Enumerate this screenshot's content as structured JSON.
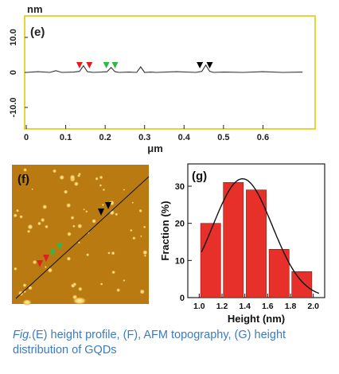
{
  "figure": {
    "caption_fig": "Fig.",
    "caption_text": "(E) height profile, (F), AFM topography, (G) height distribution of GQDs"
  },
  "chart_data": [
    {
      "type": "line",
      "panel_label": "(e)",
      "xlabel": "μm",
      "ylabel": "nm",
      "xlim": [
        0,
        0.7
      ],
      "ylim": [
        -15,
        15
      ],
      "x_ticks": [
        0,
        0.1,
        0.2,
        0.3,
        0.4,
        0.5,
        0.6
      ],
      "x_tick_labels": [
        "0",
        "0.1",
        "0.2",
        "0.3",
        "0.4",
        "0.5",
        "0.6"
      ],
      "y_ticks": [
        10,
        0,
        -10
      ],
      "y_tick_labels": [
        "10.0",
        "0",
        "-10.0"
      ],
      "series": [
        {
          "x": [
            0,
            0.03,
            0.06,
            0.075,
            0.09,
            0.12,
            0.135,
            0.145,
            0.155,
            0.17,
            0.19,
            0.205,
            0.215,
            0.225,
            0.235,
            0.26,
            0.28,
            0.29,
            0.3,
            0.315,
            0.33,
            0.38,
            0.43,
            0.445,
            0.455,
            0.465,
            0.475,
            0.5,
            0.55,
            0.6,
            0.65,
            0.7
          ],
          "y": [
            0,
            0.2,
            0,
            0.5,
            0,
            0.1,
            0.3,
            1.9,
            0.2,
            0,
            0.1,
            0.2,
            1.4,
            0.2,
            0,
            0.1,
            0,
            1.6,
            0,
            0.1,
            0,
            0.2,
            0,
            0.3,
            2.1,
            0.3,
            0,
            0.1,
            0,
            0.2,
            0,
            0.1
          ]
        }
      ],
      "markers": [
        {
          "x": 0.135,
          "color": "#e02020"
        },
        {
          "x": 0.16,
          "color": "#e02020"
        },
        {
          "x": 0.203,
          "color": "#2fb84a"
        },
        {
          "x": 0.225,
          "color": "#2fb84a"
        },
        {
          "x": 0.44,
          "color": "#000000"
        },
        {
          "x": 0.465,
          "color": "#000000"
        }
      ],
      "grid": false
    },
    {
      "type": "bar",
      "panel_label": "(g)",
      "xlabel": "Height (nm)",
      "ylabel": "Fraction (%)",
      "categories": [
        "1.0",
        "1.2",
        "1.4",
        "1.6",
        "1.8",
        "2.0"
      ],
      "values": [
        20,
        31,
        29,
        13,
        7,
        0
      ],
      "bars": [
        {
          "x": 1.1,
          "value": 20
        },
        {
          "x": 1.3,
          "value": 31
        },
        {
          "x": 1.5,
          "value": 29
        },
        {
          "x": 1.7,
          "value": 13
        },
        {
          "x": 1.9,
          "value": 7
        }
      ],
      "fit_curve": {
        "type": "gaussian",
        "center": 1.38,
        "sigma": 0.26,
        "amplitude": 32
      },
      "xlim": [
        0.9,
        2.1
      ],
      "ylim": [
        0,
        36
      ],
      "y_ticks": [
        0,
        10,
        20,
        30
      ],
      "bar_color": "#e8302a",
      "grid": false
    }
  ],
  "afm_image": {
    "panel_label": "(f)",
    "background": "#b97a12",
    "markers": [
      {
        "color": "#000000"
      },
      {
        "color": "#000000"
      },
      {
        "color": "#2fb84a"
      },
      {
        "color": "#2fb84a"
      },
      {
        "color": "#e02020"
      },
      {
        "color": "#e02020"
      }
    ]
  }
}
